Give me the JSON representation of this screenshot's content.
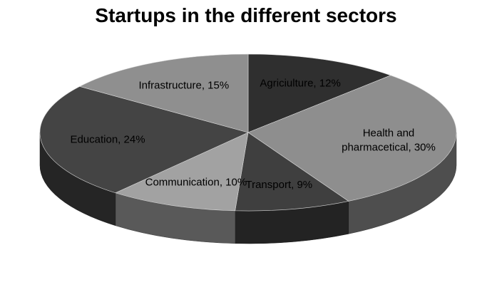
{
  "chart_data": {
    "type": "pie",
    "title": "Startups in the different sectors",
    "slices": [
      {
        "label": "Agriculture",
        "display_label": "Agriciulture, 12%",
        "value": 12,
        "color": "#2f2f2f"
      },
      {
        "label": "Health and pharmacetical",
        "display_label": "Health and pharmacetical, 30%",
        "display_lines": [
          "Health and",
          "pharmacetical, 30%"
        ],
        "value": 30,
        "color": "#8e8e8e"
      },
      {
        "label": "Transport",
        "display_label": "Transport, 9%",
        "value": 9,
        "color": "#3f3f3f"
      },
      {
        "label": "Communication",
        "display_label": "Communication, 10%",
        "value": 10,
        "color": "#a2a2a2"
      },
      {
        "label": "Education",
        "display_label": "Education, 24%",
        "value": 24,
        "color": "#444444"
      },
      {
        "label": "Infrastructure",
        "display_label": "Infrastructure, 15%",
        "value": 15,
        "color": "#8f8f8f"
      }
    ],
    "legend": "none",
    "style": "3d-pie"
  }
}
